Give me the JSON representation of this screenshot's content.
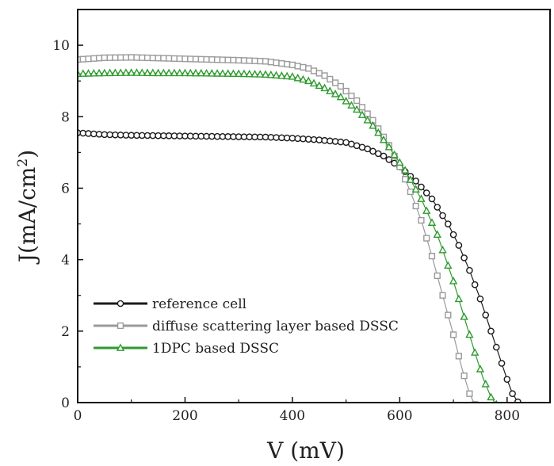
{
  "chart_data": {
    "type": "line",
    "title": "",
    "xlabel": "V (mV)",
    "ylabel": "J(mA/cm",
    "ylabel_sup": "2",
    "ylabel_close": ")",
    "xlim": [
      0,
      880
    ],
    "ylim": [
      0,
      11
    ],
    "xticks": [
      0,
      200,
      400,
      600,
      800
    ],
    "xtick_labels": [
      "0",
      "200",
      "400",
      "600",
      "800"
    ],
    "yticks": [
      0,
      2,
      4,
      6,
      8,
      10
    ],
    "ytick_labels": [
      "0",
      "2",
      "4",
      "6",
      "8",
      "10"
    ],
    "grid": false,
    "legend_position": "lower-left",
    "series": [
      {
        "name": "reference cell",
        "color": "#1a1a1a",
        "marker": "circle",
        "x": [
          0,
          50,
          100,
          150,
          200,
          250,
          300,
          350,
          400,
          450,
          500,
          540,
          570,
          600,
          630,
          660,
          690,
          710,
          730,
          750,
          770,
          790,
          800,
          810,
          820,
          830
        ],
        "y": [
          7.55,
          7.5,
          7.48,
          7.47,
          7.46,
          7.45,
          7.44,
          7.43,
          7.4,
          7.35,
          7.28,
          7.1,
          6.9,
          6.6,
          6.2,
          5.7,
          5.0,
          4.4,
          3.7,
          2.9,
          2.0,
          1.1,
          0.65,
          0.25,
          0.02,
          -0.1
        ]
      },
      {
        "name": "diffuse scattering layer based DSSC",
        "color": "#9a9a9a",
        "marker": "square",
        "x": [
          0,
          50,
          100,
          150,
          200,
          250,
          300,
          350,
          400,
          430,
          460,
          490,
          520,
          550,
          580,
          600,
          620,
          640,
          660,
          680,
          700,
          715,
          730,
          740
        ],
        "y": [
          9.6,
          9.65,
          9.66,
          9.64,
          9.62,
          9.6,
          9.58,
          9.55,
          9.45,
          9.35,
          9.15,
          8.85,
          8.45,
          7.9,
          7.2,
          6.6,
          5.9,
          5.1,
          4.1,
          3.0,
          1.9,
          1.0,
          0.25,
          -0.05
        ]
      },
      {
        "name": "1DPC based DSSC",
        "color": "#2e9a2e",
        "marker": "triangle",
        "x": [
          0,
          50,
          100,
          150,
          200,
          250,
          300,
          350,
          400,
          430,
          460,
          490,
          520,
          550,
          580,
          610,
          640,
          670,
          700,
          720,
          740,
          755,
          770,
          780
        ],
        "y": [
          9.2,
          9.22,
          9.23,
          9.22,
          9.22,
          9.21,
          9.2,
          9.18,
          9.12,
          9.0,
          8.8,
          8.55,
          8.2,
          7.75,
          7.15,
          6.5,
          5.7,
          4.7,
          3.4,
          2.4,
          1.4,
          0.7,
          0.15,
          -0.05
        ]
      }
    ]
  }
}
